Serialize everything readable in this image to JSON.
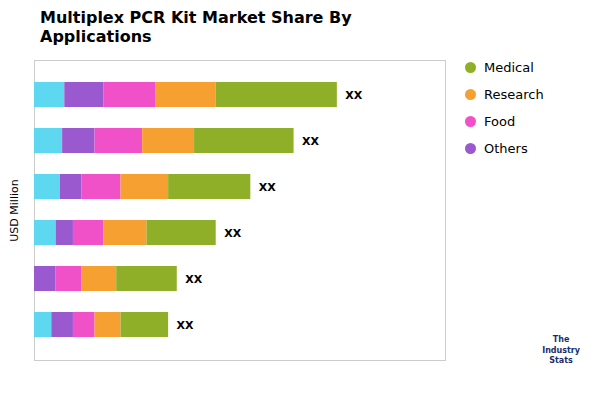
{
  "chart_data": {
    "type": "bar",
    "title": "Multiplex PCR Kit Market Share By\nApplications",
    "ylabel": "USD Million",
    "orientation": "horizontal",
    "stacked": true,
    "categories": [
      null,
      null,
      null,
      null,
      null,
      null
    ],
    "series": [
      {
        "name": null,
        "color": "#5DD8F0",
        "values": [
          0.7,
          0.65,
          0.6,
          0.5,
          0.0,
          0.4
        ]
      },
      {
        "name": "Others",
        "color": "#9B59D0",
        "values": [
          0.9,
          0.75,
          0.5,
          0.4,
          0.5,
          0.5
        ]
      },
      {
        "name": "Food",
        "color": "#F050C8",
        "values": [
          1.2,
          1.1,
          0.9,
          0.7,
          0.6,
          0.5
        ]
      },
      {
        "name": "Research",
        "color": "#F5A030",
        "values": [
          1.4,
          1.2,
          1.1,
          1.0,
          0.8,
          0.6
        ]
      },
      {
        "name": "Medical",
        "color": "#8FAF28",
        "values": [
          2.8,
          2.3,
          1.9,
          1.6,
          1.4,
          1.1
        ]
      }
    ],
    "total_labels": [
      "XX",
      "XX",
      "XX",
      "XX",
      "XX",
      "XX"
    ],
    "xlim": [
      0,
      9.5
    ],
    "xticks": [],
    "tick_labels": false,
    "grid": false,
    "legend": "right",
    "annotations": [
      "The\nIndustry\nStats"
    ]
  }
}
